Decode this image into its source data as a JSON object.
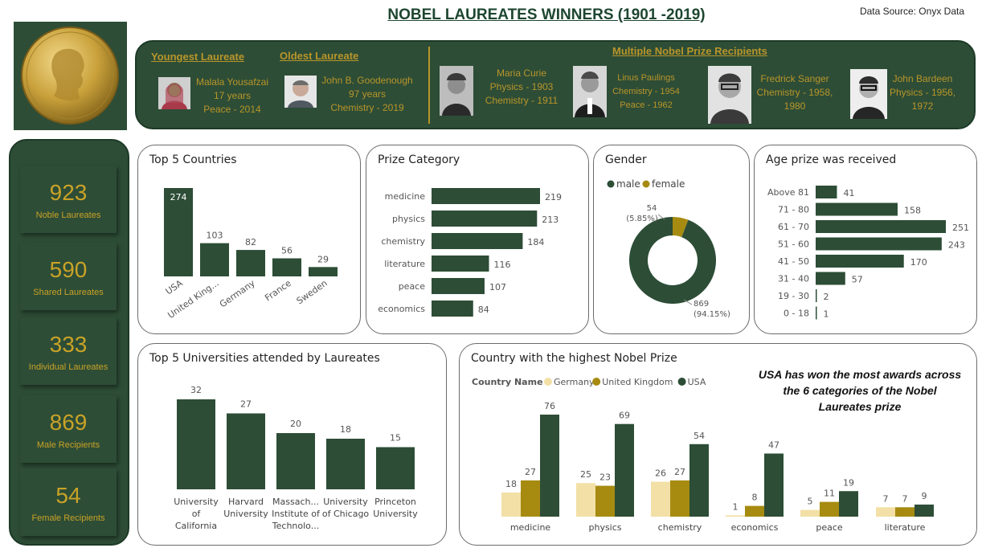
{
  "header": {
    "title": "NOBEL LAUREATES WINNERS (1901 -2019)",
    "source": "Data Source: Onyx Data"
  },
  "banner": {
    "youngest_title": "Youngest Laureate",
    "oldest_title": "Oldest Laureate",
    "multiple_title": "Multiple Nobel Prize Recipients",
    "youngest": {
      "name": "Malala Yousafzai",
      "age": "17 years",
      "prize": "Peace - 2014"
    },
    "oldest": {
      "name": "John B. Goodenough",
      "age": "97 years",
      "prize": "Chemistry - 2019"
    },
    "multiple": [
      {
        "name": "Maria Curie",
        "line2": "Physics - 1903",
        "line3": "Chemistry - 1911"
      },
      {
        "name": "Linus Paulings",
        "line2": "Chemistry - 1954",
        "line3": "Peace - 1962"
      },
      {
        "name": "Fredrick Sanger",
        "line2": "Chemistry - 1958,",
        "line3": "1980"
      },
      {
        "name": "John Bardeen",
        "line2": "Physics - 1956,",
        "line3": "1972"
      }
    ]
  },
  "kpis": [
    {
      "value": "923",
      "label": "Noble Laureates"
    },
    {
      "value": "590",
      "label": "Shared Laureates"
    },
    {
      "value": "333",
      "label": "Individual Laureates"
    },
    {
      "value": "869",
      "label": "Male Recipients"
    },
    {
      "value": "54",
      "label": "Female Recipients"
    }
  ],
  "colors": {
    "dark_green": "#2d4d36",
    "gold": "#b8952a",
    "olive": "#a68b10",
    "cream": "#f2e0a6"
  },
  "note": "USA has won the most awards across the 6 categories of the Nobel Laureates prize",
  "chart_data": [
    {
      "id": "countries",
      "type": "bar",
      "title": "Top 5 Countries",
      "categories": [
        "USA",
        "United King...",
        "Germany",
        "France",
        "Sweden"
      ],
      "values": [
        274,
        103,
        82,
        56,
        29
      ]
    },
    {
      "id": "prize",
      "type": "bar",
      "orientation": "horizontal",
      "title": "Prize Category",
      "categories": [
        "medicine",
        "physics",
        "chemistry",
        "literature",
        "peace",
        "economics"
      ],
      "values": [
        219,
        213,
        184,
        116,
        107,
        84
      ]
    },
    {
      "id": "gender",
      "type": "pie",
      "title": "Gender",
      "labels": [
        "male",
        "female"
      ],
      "values": [
        869,
        54
      ],
      "data_labels": [
        "869",
        "54"
      ],
      "percent_labels": [
        "(94.15%)",
        "(5.85%)"
      ],
      "legend": "top"
    },
    {
      "id": "age",
      "type": "bar",
      "orientation": "horizontal",
      "title": "Age prize was received",
      "categories": [
        "Above 81",
        "71 - 80",
        "61 - 70",
        "51 - 60",
        "41 - 50",
        "31 - 40",
        "19 - 30",
        "0 - 18"
      ],
      "values": [
        41,
        158,
        251,
        243,
        170,
        57,
        2,
        1
      ]
    },
    {
      "id": "universities",
      "type": "bar",
      "title": "Top 5 Universities attended by Laureates",
      "categories": [
        [
          "University",
          "of",
          "California"
        ],
        [
          "Harvard",
          "University"
        ],
        [
          "Massach...",
          "Institute of",
          "Technolo..."
        ],
        [
          "University",
          "of Chicago"
        ],
        [
          "Princeton",
          "University"
        ]
      ],
      "values": [
        32,
        27,
        20,
        18,
        15
      ]
    },
    {
      "id": "country_prize",
      "type": "bar",
      "title": "Country with the highest Nobel Prize",
      "legend_title": "Country Name",
      "categories": [
        "medicine",
        "physics",
        "chemistry",
        "economics",
        "peace",
        "literature"
      ],
      "series": [
        {
          "name": "Germany",
          "color": "#f2e0a6",
          "values": [
            18,
            25,
            26,
            1,
            5,
            7
          ]
        },
        {
          "name": "United Kingdom",
          "color": "#a68b10",
          "values": [
            27,
            23,
            27,
            8,
            11,
            7
          ]
        },
        {
          "name": "USA",
          "color": "#2d4d36",
          "values": [
            76,
            69,
            54,
            47,
            19,
            9
          ]
        }
      ]
    }
  ]
}
